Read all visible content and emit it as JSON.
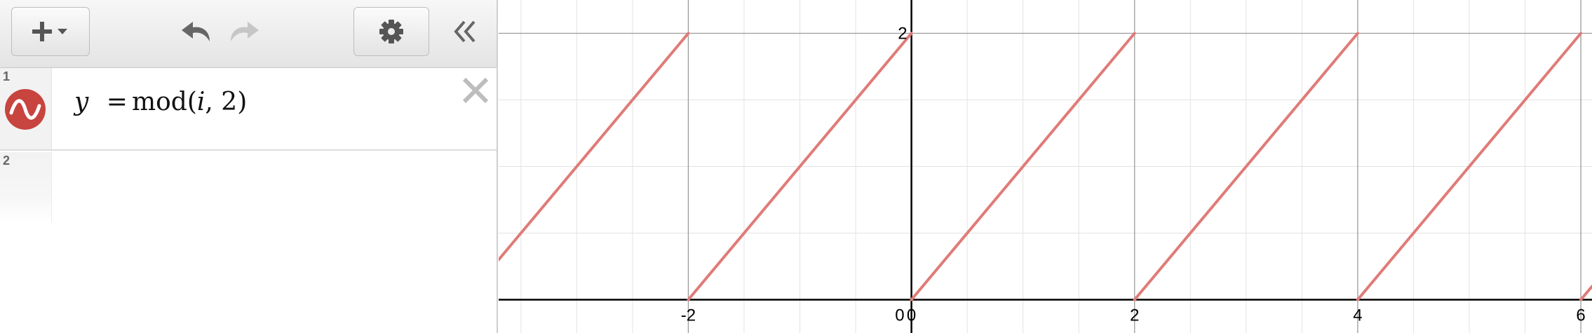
{
  "toolbar": {
    "add_icon": "plus-dropdown-icon",
    "undo_icon": "undo-icon",
    "redo_icon": "redo-icon",
    "settings_icon": "gear-icon",
    "collapse_icon": "double-chevron-left-icon"
  },
  "expressions": [
    {
      "index": "1",
      "lhs": "y",
      "equals": "=",
      "func": "mod",
      "var": "i",
      "arg": "2",
      "color": "#c8443f",
      "icon": "wave-icon"
    },
    {
      "index": "2"
    }
  ],
  "chart_data": {
    "type": "line",
    "title": "",
    "xlabel": "",
    "ylabel": "",
    "xlim": [
      -3.7,
      6.1
    ],
    "ylim": [
      -0.25,
      2.25
    ],
    "x_ticks": [
      "-2",
      "0",
      "2",
      "4",
      "6"
    ],
    "y_ticks": [
      "2"
    ],
    "origin_label": "0",
    "grid": true,
    "minor_grid_step": 0.5,
    "major_grid_step": 2,
    "series": [
      {
        "color": "#e07b78",
        "function": "mod(x, 2)"
      }
    ]
  }
}
